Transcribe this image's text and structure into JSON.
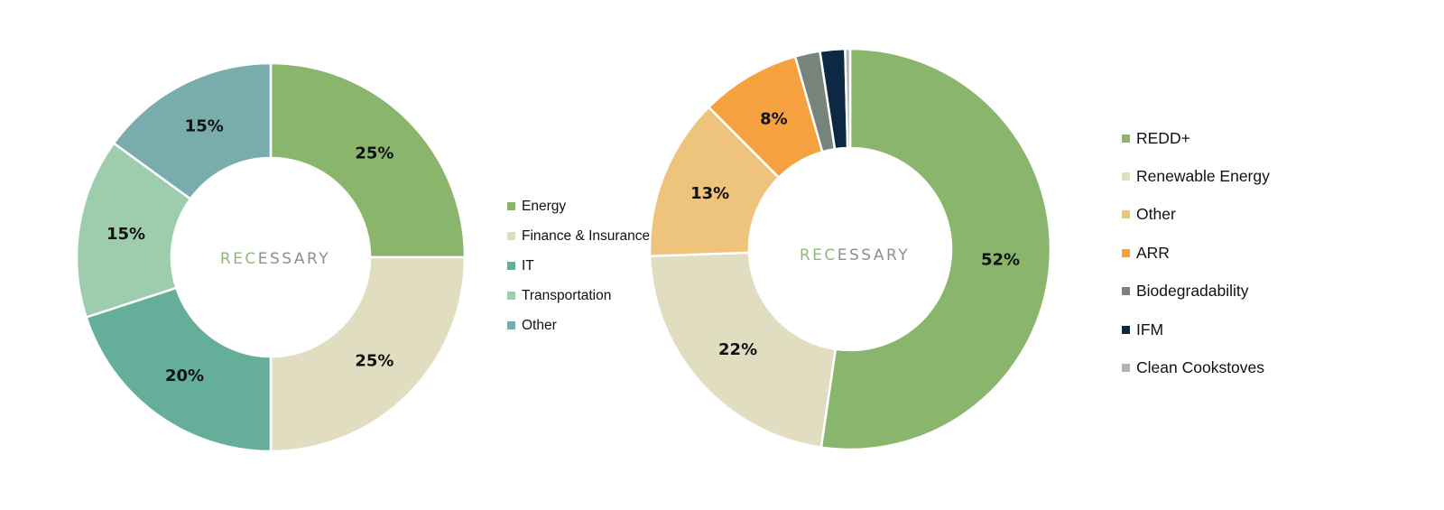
{
  "watermark": {
    "prefix": "REC",
    "suffix": "ESSARY",
    "prefix_color": "#8fb87e",
    "suffix_color": "#8e8e8e"
  },
  "chart_data": [
    {
      "type": "pie",
      "donut": true,
      "categories": [
        "Energy",
        "Finance & Insurance",
        "IT",
        "Transportation",
        "Other"
      ],
      "values": [
        25,
        25,
        20,
        15,
        15
      ],
      "labels": [
        "25%",
        "25%",
        "20%",
        "15%",
        "15%"
      ],
      "colors": [
        "#8ab56d",
        "#e1ddc0",
        "#64ae9a",
        "#9ecdae",
        "#79adad"
      ],
      "legend": "right"
    },
    {
      "type": "pie",
      "donut": true,
      "categories": [
        "REDD+",
        "Renewable Energy",
        "Other",
        "ARR",
        "Biodegradability",
        "IFM",
        "Clean Cookstoves"
      ],
      "values": [
        52,
        22,
        13,
        8,
        2,
        2,
        0.4
      ],
      "labels": [
        "52%",
        "22%",
        "13%",
        "8%",
        "",
        "",
        ""
      ],
      "colors": [
        "#8ab56d",
        "#e1ddc0",
        "#eec47d",
        "#f5a140",
        "#76847c",
        "#0d2842",
        "#b3b3b3"
      ],
      "legend": "right"
    }
  ]
}
